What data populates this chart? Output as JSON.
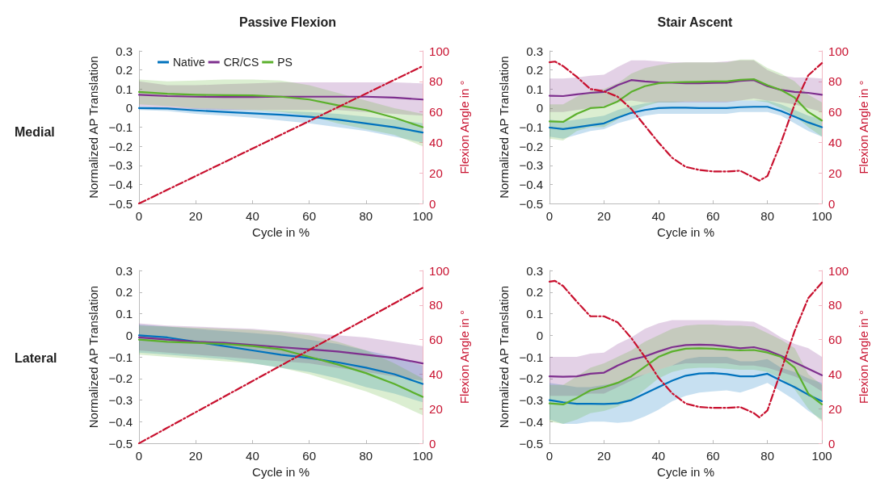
{
  "chart_data": [
    {
      "type": "line",
      "title": "Passive Flexion",
      "annotations": [
        "Medial"
      ],
      "xlabel": "Cycle in %",
      "ylabel": "Normalized AP Translation",
      "y2label": "Flexion Angle in °",
      "xlim": [
        0,
        100
      ],
      "xticks": [
        0,
        20,
        40,
        60,
        80,
        100
      ],
      "ylim": [
        -0.5,
        0.3
      ],
      "yticks": [
        {
          "value": -0.5,
          "label": "−0.5"
        },
        {
          "value": -0.4,
          "label": "−0.4"
        },
        {
          "value": -0.3,
          "label": "−0.3"
        },
        {
          "value": -0.2,
          "label": "−0.2"
        },
        {
          "value": -0.1,
          "label": "−0.1"
        },
        0,
        0.1,
        0.2,
        0.3
      ],
      "y2lim": [
        0,
        100
      ],
      "y2ticks": [
        0,
        20,
        40,
        60,
        80,
        100
      ],
      "grid": false,
      "marker": "none",
      "legend": "top left",
      "x": [
        0,
        10,
        20,
        30,
        40,
        50,
        60,
        70,
        80,
        90,
        100
      ],
      "series": [
        {
          "name": "Native",
          "color": "#0072bd",
          "values": [
            0,
            -0.002,
            -0.012,
            -0.02,
            -0.027,
            -0.035,
            -0.045,
            -0.06,
            -0.08,
            -0.1,
            -0.128
          ],
          "lower": [
            -0.01,
            -0.015,
            -0.03,
            -0.04,
            -0.05,
            -0.065,
            -0.08,
            -0.1,
            -0.12,
            -0.15,
            -0.18
          ],
          "upper": [
            0.01,
            0.005,
            0,
            -0.005,
            -0.01,
            -0.015,
            -0.02,
            -0.03,
            -0.045,
            -0.06,
            -0.08
          ]
        },
        {
          "name": "CR/CS",
          "color": "#7e2f8e",
          "values": [
            0.07,
            0.063,
            0.06,
            0.058,
            0.058,
            0.06,
            0.06,
            0.06,
            0.06,
            0.055,
            0.045
          ],
          "lower": [
            0.01,
            0,
            -0.005,
            -0.01,
            -0.01,
            -0.01,
            -0.01,
            -0.01,
            -0.02,
            -0.03,
            -0.04
          ],
          "upper": [
            0.14,
            0.12,
            0.12,
            0.125,
            0.13,
            0.135,
            0.135,
            0.135,
            0.135,
            0.135,
            0.13
          ]
        },
        {
          "name": "PS",
          "color": "#5bb02c",
          "values": [
            0.085,
            0.075,
            0.07,
            0.068,
            0.067,
            0.06,
            0.045,
            0.015,
            -0.01,
            -0.05,
            -0.1
          ],
          "lower": [
            0.02,
            0.01,
            0,
            -0.005,
            -0.01,
            -0.02,
            -0.04,
            -0.08,
            -0.11,
            -0.14,
            -0.2
          ],
          "upper": [
            0.15,
            0.14,
            0.145,
            0.15,
            0.15,
            0.145,
            0.12,
            0.08,
            0.04,
            0,
            -0.03
          ]
        },
        {
          "color": "#c8102e",
          "axis": "y2",
          "line_style": "dashed",
          "values": [
            0,
            9,
            18,
            27,
            36,
            45,
            54,
            63,
            72,
            81,
            90
          ]
        }
      ]
    },
    {
      "type": "line",
      "title": "Stair Ascent",
      "xlabel": "Cycle in %",
      "ylabel": "Normalized AP Translation",
      "y2label": "Flexion Angle in °",
      "xlim": [
        0,
        100
      ],
      "xticks": [
        0,
        20,
        40,
        60,
        80,
        100
      ],
      "ylim": [
        -0.5,
        0.3
      ],
      "yticks": [
        {
          "value": -0.5,
          "label": "−0.5"
        },
        {
          "value": -0.4,
          "label": "−0.4"
        },
        {
          "value": -0.3,
          "label": "−0.3"
        },
        {
          "value": -0.2,
          "label": "−0.2"
        },
        {
          "value": -0.1,
          "label": "−0.1"
        },
        0,
        0.1,
        0.2,
        0.3
      ],
      "y2lim": [
        0,
        100
      ],
      "y2ticks": [
        0,
        20,
        40,
        60,
        80,
        100
      ],
      "grid": false,
      "marker": "none",
      "x": [
        0,
        5,
        10,
        15,
        20,
        25,
        30,
        35,
        40,
        45,
        50,
        55,
        60,
        65,
        70,
        75,
        80,
        85,
        90,
        95,
        100
      ],
      "series": [
        {
          "color": "#0072bd",
          "values": [
            -0.102,
            -0.11,
            -0.1,
            -0.09,
            -0.08,
            -0.05,
            -0.025,
            -0.01,
            0,
            0.002,
            0.002,
            0,
            0,
            0,
            0.005,
            0.007,
            0.007,
            -0.015,
            -0.045,
            -0.075,
            -0.1
          ],
          "lower": [
            -0.15,
            -0.16,
            -0.14,
            -0.12,
            -0.11,
            -0.08,
            -0.06,
            -0.04,
            -0.03,
            -0.03,
            -0.03,
            -0.03,
            -0.03,
            -0.03,
            -0.02,
            -0.02,
            -0.02,
            -0.04,
            -0.08,
            -0.12,
            -0.15
          ],
          "upper": [
            -0.06,
            -0.07,
            -0.06,
            -0.05,
            -0.04,
            -0.01,
            0.01,
            0.025,
            0.035,
            0.035,
            0.035,
            0.035,
            0.035,
            0.035,
            0.04,
            0.04,
            0.04,
            0.02,
            -0.01,
            -0.04,
            -0.06
          ]
        },
        {
          "color": "#7e2f8e",
          "values": [
            0.065,
            0.063,
            0.072,
            0.08,
            0.085,
            0.12,
            0.147,
            0.14,
            0.135,
            0.133,
            0.13,
            0.13,
            0.132,
            0.133,
            0.143,
            0.147,
            0.115,
            0.095,
            0.085,
            0.08,
            0.07
          ],
          "lower": [
            -0.02,
            -0.02,
            -0.01,
            0,
            0.01,
            0.03,
            0.04,
            0.03,
            0.03,
            0.03,
            0.03,
            0.03,
            0.03,
            0.03,
            0.04,
            0.05,
            0.04,
            0.03,
            0.02,
            0,
            -0.02
          ],
          "upper": [
            0.155,
            0.155,
            0.16,
            0.17,
            0.175,
            0.215,
            0.25,
            0.25,
            0.245,
            0.24,
            0.24,
            0.24,
            0.24,
            0.245,
            0.25,
            0.25,
            0.2,
            0.17,
            0.16,
            0.16,
            0.155
          ]
        },
        {
          "color": "#5bb02c",
          "values": [
            -0.07,
            -0.072,
            -0.03,
            0,
            0.005,
            0.035,
            0.085,
            0.115,
            0.13,
            0.135,
            0.137,
            0.138,
            0.14,
            0.14,
            0.148,
            0.152,
            0.12,
            0.095,
            0.055,
            -0.02,
            -0.065
          ],
          "lower": [
            -0.16,
            -0.17,
            -0.12,
            -0.1,
            -0.1,
            -0.06,
            -0.02,
            0.01,
            0.03,
            0.03,
            0.035,
            0.035,
            0.035,
            0.035,
            0.04,
            0.04,
            0.03,
            0,
            -0.04,
            -0.1,
            -0.15
          ],
          "upper": [
            0.02,
            0.02,
            0.06,
            0.09,
            0.1,
            0.13,
            0.18,
            0.21,
            0.225,
            0.235,
            0.24,
            0.24,
            0.24,
            0.24,
            0.255,
            0.255,
            0.21,
            0.18,
            0.14,
            0.07,
            0.03
          ]
        },
        {
          "color": "#c8102e",
          "axis": "y2",
          "line_style": "dashed",
          "x": [
            0,
            2,
            5,
            10,
            15,
            20,
            25,
            30,
            35,
            40,
            45,
            50,
            55,
            60,
            65,
            70,
            75,
            77,
            80,
            85,
            90,
            95,
            100
          ],
          "values": [
            92.5,
            93,
            90,
            83,
            75,
            73.5,
            70,
            62,
            51,
            40,
            30,
            24,
            22,
            21,
            21,
            21.5,
            17,
            15,
            18,
            40,
            65,
            84,
            92
          ]
        }
      ]
    },
    {
      "type": "line",
      "annotations": [
        "Lateral"
      ],
      "xlabel": "Cycle in %",
      "ylabel": "Normalized AP Translation",
      "y2label": "Flexion Angle in °",
      "xlim": [
        0,
        100
      ],
      "xticks": [
        0,
        20,
        40,
        60,
        80,
        100
      ],
      "ylim": [
        -0.5,
        0.3
      ],
      "yticks": [
        {
          "value": -0.5,
          "label": "−0.5"
        },
        {
          "value": -0.4,
          "label": "−0.4"
        },
        {
          "value": -0.3,
          "label": "−0.3"
        },
        {
          "value": -0.2,
          "label": "−0.2"
        },
        {
          "value": -0.1,
          "label": "−0.1"
        },
        0,
        0.1,
        0.2,
        0.3
      ],
      "y2lim": [
        0,
        100
      ],
      "y2ticks": [
        0,
        20,
        40,
        60,
        80,
        100
      ],
      "grid": false,
      "marker": "none",
      "x": [
        0,
        10,
        20,
        30,
        40,
        50,
        60,
        70,
        80,
        90,
        100
      ],
      "series": [
        {
          "color": "#0072bd",
          "values": [
            0,
            -0.01,
            -0.03,
            -0.05,
            -0.07,
            -0.09,
            -0.105,
            -0.125,
            -0.15,
            -0.18,
            -0.225
          ],
          "lower": [
            -0.08,
            -0.09,
            -0.1,
            -0.11,
            -0.13,
            -0.15,
            -0.17,
            -0.2,
            -0.24,
            -0.27,
            -0.31
          ],
          "upper": [
            0.05,
            0.04,
            0.03,
            0.02,
            0.01,
            0,
            -0.02,
            -0.04,
            -0.07,
            -0.1,
            -0.14
          ]
        },
        {
          "color": "#7e2f8e",
          "values": [
            -0.01,
            -0.02,
            -0.03,
            -0.035,
            -0.045,
            -0.055,
            -0.065,
            -0.075,
            -0.09,
            -0.105,
            -0.13
          ],
          "lower": [
            -0.07,
            -0.08,
            -0.09,
            -0.1,
            -0.11,
            -0.12,
            -0.13,
            -0.15,
            -0.17,
            -0.19,
            -0.21
          ],
          "upper": [
            0.055,
            0.045,
            0.04,
            0.035,
            0.03,
            0.02,
            0.01,
            0,
            -0.01,
            -0.03,
            -0.05
          ]
        },
        {
          "color": "#5bb02c",
          "values": [
            -0.02,
            -0.03,
            -0.035,
            -0.04,
            -0.05,
            -0.065,
            -0.1,
            -0.135,
            -0.175,
            -0.225,
            -0.285
          ],
          "lower": [
            -0.09,
            -0.1,
            -0.11,
            -0.12,
            -0.13,
            -0.15,
            -0.18,
            -0.22,
            -0.26,
            -0.31,
            -0.37
          ],
          "upper": [
            0.045,
            0.04,
            0.035,
            0.03,
            0.025,
            0.015,
            0,
            -0.03,
            -0.07,
            -0.13,
            -0.2
          ]
        },
        {
          "color": "#c8102e",
          "axis": "y2",
          "line_style": "dashed",
          "values": [
            0,
            9,
            18,
            27,
            36,
            45,
            54,
            63,
            72,
            81,
            90
          ]
        }
      ]
    },
    {
      "type": "line",
      "xlabel": "Cycle in %",
      "ylabel": "Normalized AP Translation",
      "y2label": "Flexion Angle in °",
      "xlim": [
        0,
        100
      ],
      "xticks": [
        0,
        20,
        40,
        60,
        80,
        100
      ],
      "ylim": [
        -0.5,
        0.3
      ],
      "yticks": [
        {
          "value": -0.5,
          "label": "−0.5"
        },
        {
          "value": -0.4,
          "label": "−0.4"
        },
        {
          "value": -0.3,
          "label": "−0.3"
        },
        {
          "value": -0.2,
          "label": "−0.2"
        },
        {
          "value": -0.1,
          "label": "−0.1"
        },
        0,
        0.1,
        0.2,
        0.3
      ],
      "y2lim": [
        0,
        100
      ],
      "y2ticks": [
        0,
        20,
        40,
        60,
        80,
        100
      ],
      "grid": false,
      "marker": "none",
      "x": [
        0,
        5,
        10,
        15,
        20,
        25,
        30,
        35,
        40,
        45,
        50,
        55,
        60,
        65,
        70,
        75,
        80,
        85,
        90,
        95,
        100
      ],
      "series": [
        {
          "color": "#0072bd",
          "values": [
            -0.3,
            -0.31,
            -0.317,
            -0.317,
            -0.318,
            -0.315,
            -0.3,
            -0.27,
            -0.24,
            -0.21,
            -0.187,
            -0.177,
            -0.175,
            -0.18,
            -0.19,
            -0.19,
            -0.178,
            -0.21,
            -0.24,
            -0.275,
            -0.305
          ],
          "lower": [
            -0.39,
            -0.41,
            -0.41,
            -0.4,
            -0.4,
            -0.405,
            -0.4,
            -0.375,
            -0.345,
            -0.305,
            -0.28,
            -0.265,
            -0.26,
            -0.255,
            -0.265,
            -0.245,
            -0.22,
            -0.26,
            -0.3,
            -0.35,
            -0.39
          ],
          "upper": [
            -0.22,
            -0.23,
            -0.24,
            -0.24,
            -0.23,
            -0.22,
            -0.2,
            -0.18,
            -0.16,
            -0.14,
            -0.11,
            -0.1,
            -0.1,
            -0.1,
            -0.12,
            -0.12,
            -0.11,
            -0.15,
            -0.17,
            -0.2,
            -0.22
          ]
        },
        {
          "color": "#7e2f8e",
          "values": [
            -0.19,
            -0.192,
            -0.19,
            -0.178,
            -0.173,
            -0.14,
            -0.113,
            -0.098,
            -0.075,
            -0.055,
            -0.045,
            -0.043,
            -0.045,
            -0.052,
            -0.06,
            -0.055,
            -0.07,
            -0.095,
            -0.125,
            -0.155,
            -0.185
          ],
          "lower": [
            -0.28,
            -0.28,
            -0.28,
            -0.27,
            -0.27,
            -0.24,
            -0.21,
            -0.18,
            -0.16,
            -0.14,
            -0.13,
            -0.13,
            -0.13,
            -0.13,
            -0.14,
            -0.14,
            -0.15,
            -0.17,
            -0.19,
            -0.22,
            -0.26
          ],
          "upper": [
            -0.1,
            -0.1,
            -0.1,
            -0.085,
            -0.08,
            -0.04,
            -0.01,
            0.03,
            0.055,
            0.07,
            0.07,
            0.07,
            0.07,
            0.068,
            0.066,
            0.063,
            0.03,
            -0.01,
            -0.04,
            -0.06,
            -0.1
          ]
        },
        {
          "color": "#5bb02c",
          "values": [
            -0.315,
            -0.32,
            -0.29,
            -0.255,
            -0.24,
            -0.22,
            -0.19,
            -0.145,
            -0.1,
            -0.075,
            -0.062,
            -0.06,
            -0.062,
            -0.067,
            -0.07,
            -0.068,
            -0.08,
            -0.1,
            -0.15,
            -0.27,
            -0.32
          ],
          "lower": [
            -0.4,
            -0.41,
            -0.39,
            -0.36,
            -0.35,
            -0.33,
            -0.3,
            -0.25,
            -0.2,
            -0.17,
            -0.155,
            -0.15,
            -0.15,
            -0.155,
            -0.16,
            -0.16,
            -0.17,
            -0.2,
            -0.25,
            -0.34,
            -0.4
          ],
          "upper": [
            -0.23,
            -0.23,
            -0.19,
            -0.15,
            -0.13,
            -0.1,
            -0.07,
            -0.03,
            0,
            0.03,
            0.045,
            0.05,
            0.05,
            0.045,
            0.045,
            0.04,
            0.01,
            -0.02,
            -0.06,
            -0.18,
            -0.23
          ]
        },
        {
          "color": "#c8102e",
          "axis": "y2",
          "line_style": "dashed",
          "x": [
            0,
            2,
            5,
            10,
            15,
            20,
            25,
            30,
            35,
            40,
            45,
            50,
            55,
            60,
            65,
            70,
            75,
            77,
            80,
            85,
            90,
            95,
            100
          ],
          "values": [
            93.5,
            94,
            91,
            82,
            73.5,
            73.5,
            70,
            61,
            50,
            38,
            29,
            23,
            21,
            20.5,
            20.5,
            21,
            17.5,
            15,
            19,
            42,
            65,
            84,
            93
          ]
        }
      ]
    }
  ]
}
